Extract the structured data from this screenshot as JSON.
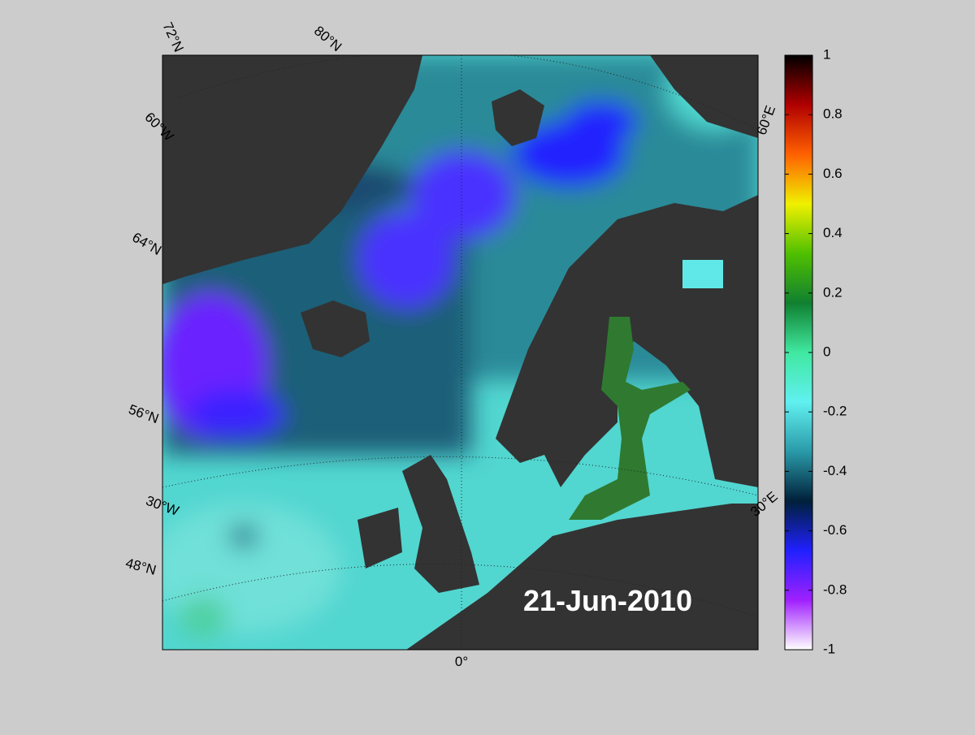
{
  "map": {
    "date_label": "21-Jun-2010",
    "graticule_labels": [
      "72°N",
      "80°N",
      "60°W",
      "64°N",
      "56°N",
      "30°W",
      "48°N",
      "0°",
      "30°E",
      "60°E"
    ],
    "colorbar": {
      "lim": [
        -1,
        1
      ],
      "ticks": [
        1,
        0.8,
        0.6,
        0.4,
        0.2,
        0,
        -0.2,
        -0.4,
        -0.6,
        -0.8,
        -1
      ],
      "colors": [
        "#000000",
        "#b00000",
        "#ff6000",
        "#f0f000",
        "#50c000",
        "#108030",
        "#40e8a0",
        "#60f0f0",
        "#2a9aa8",
        "#00203a",
        "#2020ff",
        "#a020ff",
        "#ffffff"
      ]
    }
  }
}
